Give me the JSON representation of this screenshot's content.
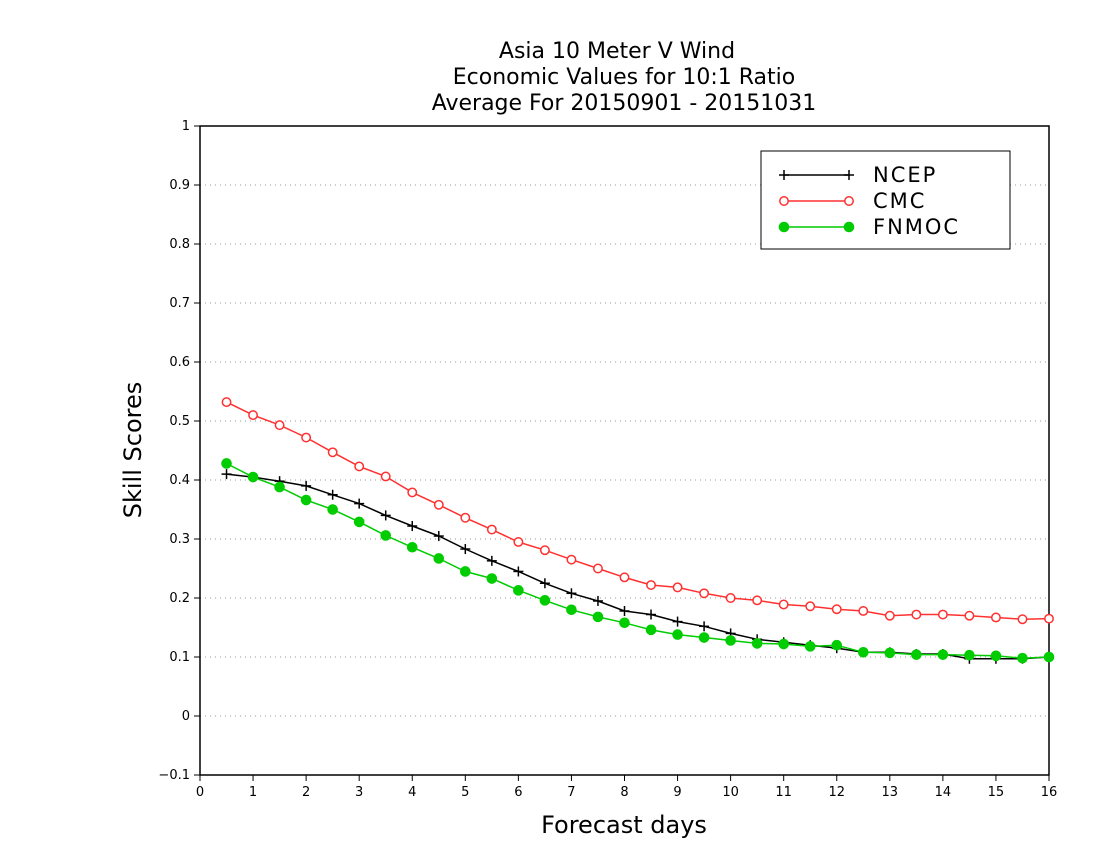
{
  "chart_data": {
    "type": "line",
    "title": "Asia 10 Meter V Wind",
    "subtitle": [
      "Economic Values for 10:1 Ratio",
      "Average For 20150901 - 20151031"
    ],
    "xlabel": "Forecast days",
    "ylabel": "Skill Scores",
    "xlim": [
      0,
      16
    ],
    "ylim": [
      -0.1,
      1
    ],
    "xticks": [
      "0",
      "1",
      "2",
      "3",
      "4",
      "5",
      "6",
      "7",
      "8",
      "9",
      "10",
      "11",
      "12",
      "13",
      "14",
      "15",
      "16"
    ],
    "yticks": [
      "−0.1",
      "0",
      "0.1",
      "0.2",
      "0.3",
      "0.4",
      "0.5",
      "0.6",
      "0.7",
      "0.8",
      "0.9",
      "1"
    ],
    "grid": "dotted horizontal",
    "legend_position": "top-right",
    "series": [
      {
        "name": "NCEP",
        "color": "#000000",
        "marker": "plus",
        "x": [
          0.5,
          1,
          1.5,
          2,
          2.5,
          3,
          3.5,
          4,
          4.5,
          5,
          5.5,
          6,
          6.5,
          7,
          7.5,
          8,
          8.5,
          9,
          9.5,
          10,
          10.5,
          11,
          11.5,
          12,
          12.5,
          13,
          13.5,
          14,
          14.5,
          15,
          15.5,
          16
        ],
        "values": [
          0.41,
          0.405,
          0.398,
          0.39,
          0.375,
          0.36,
          0.34,
          0.322,
          0.305,
          0.283,
          0.263,
          0.245,
          0.225,
          0.208,
          0.195,
          0.178,
          0.172,
          0.16,
          0.152,
          0.14,
          0.13,
          0.125,
          0.12,
          0.115,
          0.108,
          0.108,
          0.105,
          0.105,
          0.097,
          0.097,
          0.097,
          0.1
        ]
      },
      {
        "name": "CMC",
        "color": "#ff3030",
        "marker": "open-circle",
        "x": [
          0.5,
          1,
          1.5,
          2,
          2.5,
          3,
          3.5,
          4,
          4.5,
          5,
          5.5,
          6,
          6.5,
          7,
          7.5,
          8,
          8.5,
          9,
          9.5,
          10,
          10.5,
          11,
          11.5,
          12,
          12.5,
          13,
          13.5,
          14,
          14.5,
          15,
          15.5,
          16
        ],
        "values": [
          0.532,
          0.51,
          0.493,
          0.472,
          0.447,
          0.423,
          0.406,
          0.379,
          0.358,
          0.336,
          0.316,
          0.295,
          0.281,
          0.265,
          0.25,
          0.235,
          0.222,
          0.218,
          0.208,
          0.2,
          0.196,
          0.189,
          0.186,
          0.181,
          0.178,
          0.17,
          0.172,
          0.172,
          0.17,
          0.167,
          0.164,
          0.165
        ]
      },
      {
        "name": "FNMOC",
        "color": "#00cc00",
        "marker": "filled-circle",
        "x": [
          0.5,
          1,
          1.5,
          2,
          2.5,
          3,
          3.5,
          4,
          4.5,
          5,
          5.5,
          6,
          6.5,
          7,
          7.5,
          8,
          8.5,
          9,
          9.5,
          10,
          10.5,
          11,
          11.5,
          12,
          12.5,
          13,
          13.5,
          14,
          14.5,
          15,
          15.5,
          16
        ],
        "values": [
          0.428,
          0.405,
          0.388,
          0.366,
          0.35,
          0.329,
          0.306,
          0.286,
          0.267,
          0.245,
          0.233,
          0.213,
          0.196,
          0.18,
          0.168,
          0.158,
          0.146,
          0.138,
          0.133,
          0.128,
          0.123,
          0.122,
          0.118,
          0.12,
          0.108,
          0.107,
          0.104,
          0.104,
          0.103,
          0.102,
          0.098,
          0.1
        ]
      }
    ]
  }
}
